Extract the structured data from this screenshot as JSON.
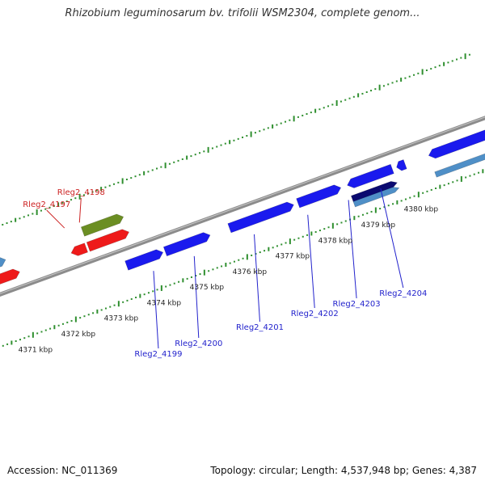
{
  "header": {
    "title": "Rhizobium leguminosarum bv. trifolii WSM2304, complete genom..."
  },
  "footer": {
    "accession": "Accession: NC_011369",
    "stats": "Topology: circular; Length: 4,537,948 bp; Genes: 4,387"
  },
  "colors": {
    "forward_gene": "#1a1aee",
    "reverse_gene": "#ee1a1a",
    "rna_gene": "#6b8e23",
    "pseudo_gene": "#4f8fc7",
    "selected_gene": "#0a0a70",
    "backbone": "#8c8c8c",
    "tick": "#2f8f2f",
    "label_forward": "#2222cc",
    "label_reverse": "#cc2222"
  },
  "scale": {
    "unit": "kbp",
    "labels": [
      {
        "kbp": 4371,
        "text": "4371 kbp"
      },
      {
        "kbp": 4372,
        "text": "4372 kbp"
      },
      {
        "kbp": 4373,
        "text": "4373 kbp"
      },
      {
        "kbp": 4374,
        "text": "4374 kbp"
      },
      {
        "kbp": 4375,
        "text": "4375 kbp"
      },
      {
        "kbp": 4376,
        "text": "4376 kbp"
      },
      {
        "kbp": 4377,
        "text": "4377 kbp"
      },
      {
        "kbp": 4378,
        "text": "4378 kbp"
      },
      {
        "kbp": 4379,
        "text": "4379 kbp"
      },
      {
        "kbp": 4380,
        "text": "4380 kbp"
      }
    ]
  },
  "genes": {
    "reverse_labels": [
      {
        "text": "Rleg2_4197",
        "kbp": 4372.45
      },
      {
        "text": "Rleg2_4198",
        "kbp": 4372.8
      }
    ],
    "forward_labels": [
      {
        "text": "Rleg2_4199",
        "kbp": 4374.0
      },
      {
        "text": "Rleg2_4200",
        "kbp": 4374.95
      },
      {
        "text": "Rleg2_4201",
        "kbp": 4376.35
      },
      {
        "text": "Rleg2_4202",
        "kbp": 4377.6
      },
      {
        "text": "Rleg2_4203",
        "kbp": 4378.55
      },
      {
        "text": "Rleg2_4204",
        "kbp": 4379.3
      }
    ],
    "features": [
      {
        "track": "reverse_pseudo",
        "start": 4370.2,
        "end": 4371.0,
        "dir": 1
      },
      {
        "track": "reverse",
        "start": 4370.2,
        "end": 4371.2,
        "dir": 1
      },
      {
        "track": "reverse",
        "start": 4372.4,
        "end": 4372.75,
        "dir": -1
      },
      {
        "track": "reverse",
        "start": 4372.8,
        "end": 4373.75,
        "dir": 1
      },
      {
        "track": "reverse_rna",
        "start": 4372.8,
        "end": 4373.75,
        "dir": 1
      },
      {
        "track": "forward",
        "start": 4373.45,
        "end": 4374.3,
        "dir": 1
      },
      {
        "track": "forward",
        "start": 4374.35,
        "end": 4375.4,
        "dir": 1
      },
      {
        "track": "forward",
        "start": 4375.85,
        "end": 4377.35,
        "dir": 1
      },
      {
        "track": "forward",
        "start": 4377.45,
        "end": 4378.45,
        "dir": 1
      },
      {
        "track": "forward",
        "start": 4378.6,
        "end": 4379.65,
        "dir": -1
      },
      {
        "track": "forward_selected",
        "start": 4378.6,
        "end": 4379.65,
        "dir": 1
      },
      {
        "track": "forward_pseudo",
        "start": 4378.6,
        "end": 4379.65,
        "dir": 1
      },
      {
        "track": "forward",
        "start": 4379.75,
        "end": 4379.95,
        "dir": -1
      },
      {
        "track": "forward",
        "start": 4380.5,
        "end": 4381.9,
        "dir": -1
      },
      {
        "track": "forward_pseudo",
        "start": 4380.5,
        "end": 4381.9,
        "dir": 1
      }
    ]
  }
}
